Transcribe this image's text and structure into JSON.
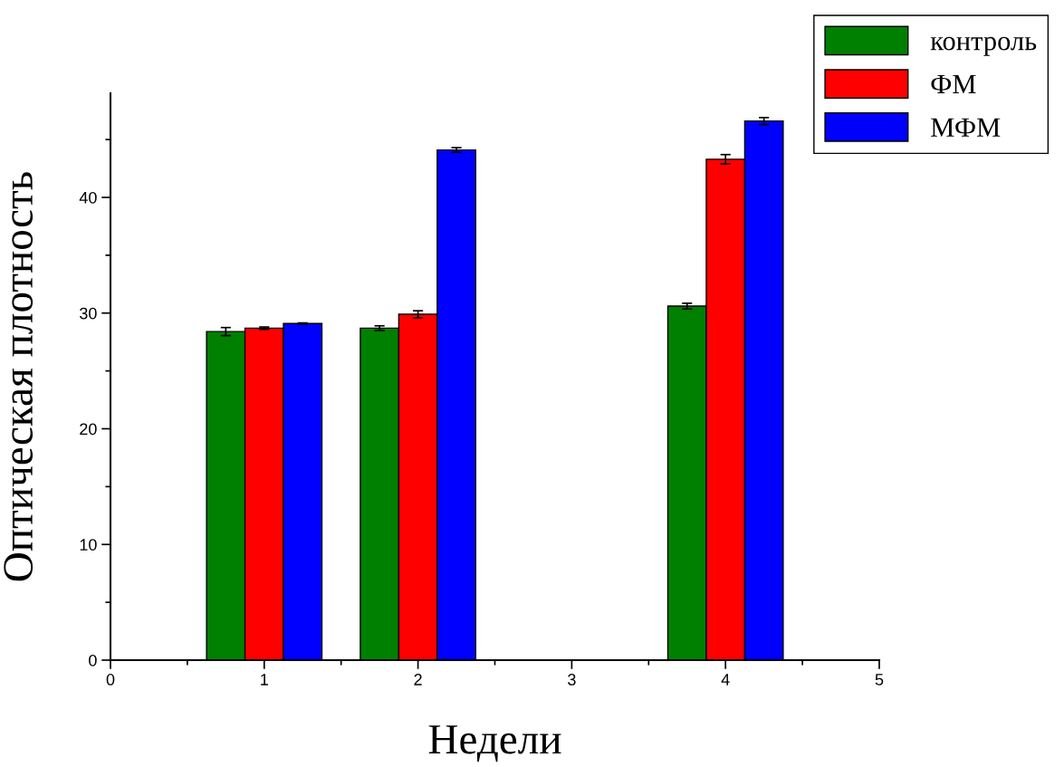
{
  "chart_data": {
    "type": "bar",
    "xlabel": "Недели",
    "ylabel": "Оптическая плотность",
    "x": [
      1,
      2,
      4
    ],
    "series": [
      {
        "name": "контроль",
        "color": "#008000",
        "values": [
          28.4,
          28.7,
          30.6
        ],
        "errors": [
          0.35,
          0.2,
          0.25
        ]
      },
      {
        "name": "ФМ",
        "color": "#ff0000",
        "values": [
          28.7,
          29.9,
          43.3
        ],
        "errors": [
          0.1,
          0.3,
          0.4
        ]
      },
      {
        "name": "МФМ",
        "color": "#0000ff",
        "values": [
          29.1,
          44.1,
          46.6
        ],
        "errors": [
          0.05,
          0.2,
          0.3
        ]
      }
    ],
    "xlim": [
      0,
      5
    ],
    "xticks": [
      0,
      1,
      2,
      3,
      4,
      5
    ],
    "ylim": [
      0,
      49
    ],
    "yticks": [
      0,
      10,
      20,
      30,
      40
    ],
    "grid": false,
    "legend": "top right"
  }
}
